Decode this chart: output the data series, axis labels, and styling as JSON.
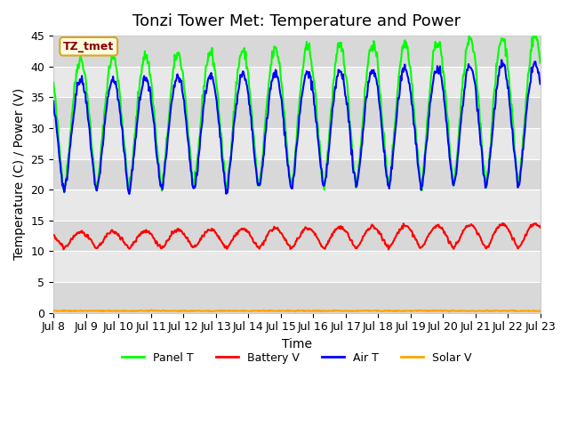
{
  "title": "Tonzi Tower Met: Temperature and Power",
  "xlabel": "Time",
  "ylabel": "Temperature (C) / Power (V)",
  "annotation": "TZ_tmet",
  "xlim_days": [
    8,
    23
  ],
  "ylim": [
    0,
    45
  ],
  "yticks": [
    0,
    5,
    10,
    15,
    20,
    25,
    30,
    35,
    40,
    45
  ],
  "xtick_labels": [
    "Jul 8",
    "Jul 9",
    "Jul 10",
    "Jul 11",
    "Jul 12",
    "Jul 13",
    "Jul 14",
    "Jul 15",
    "Jul 16",
    "Jul 17",
    "Jul 18",
    "Jul 19",
    "Jul 20",
    "Jul 21",
    "Jul 22",
    "Jul 23"
  ],
  "series": {
    "panel_t": {
      "color": "#00FF00",
      "label": "Panel T",
      "linewidth": 1.5
    },
    "battery_v": {
      "color": "#FF0000",
      "label": "Battery V",
      "linewidth": 1.5
    },
    "air_t": {
      "color": "#0000FF",
      "label": "Air T",
      "linewidth": 1.5
    },
    "solar_v": {
      "color": "#FFA500",
      "label": "Solar V",
      "linewidth": 1.5
    }
  },
  "background_color": "#ffffff",
  "plot_bg_color": "#e8e8e8",
  "band1_color": "#d8d8d8",
  "band2_color": "#e8e8e8",
  "title_fontsize": 13,
  "axis_fontsize": 10,
  "tick_fontsize": 9
}
